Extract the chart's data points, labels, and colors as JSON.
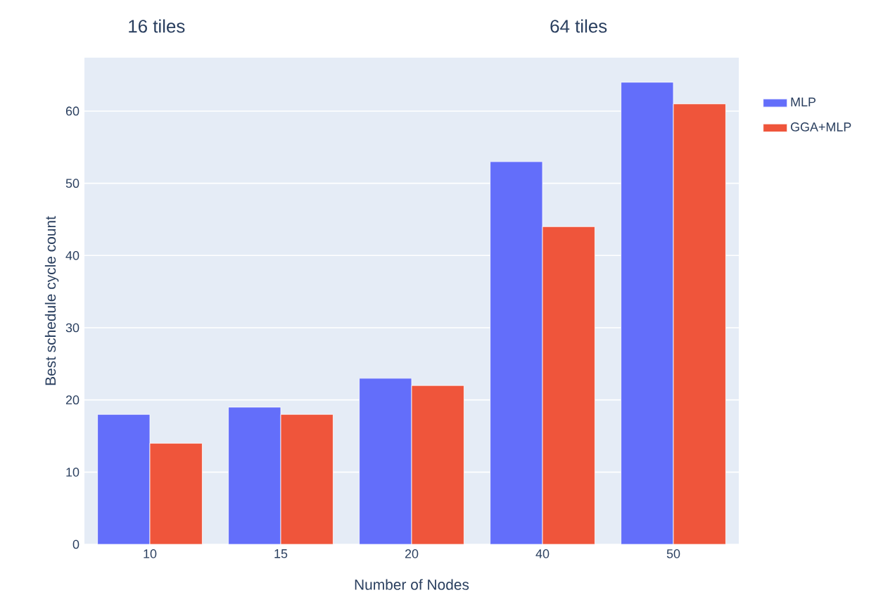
{
  "chart_data": {
    "type": "bar",
    "categories": [
      "10",
      "15",
      "20",
      "40",
      "50"
    ],
    "series": [
      {
        "name": "MLP",
        "color": "#636efa",
        "values": [
          18,
          19,
          23,
          53,
          64
        ]
      },
      {
        "name": "GGA+MLP",
        "color": "#ef553b",
        "values": [
          14,
          18,
          22,
          44,
          61
        ]
      }
    ],
    "xlabel": "Number of Nodes",
    "ylabel": "Best schedule cycle count",
    "annotations": [
      "16 tiles",
      "64 tiles"
    ],
    "ylim": [
      0,
      67.4
    ],
    "yticks": [
      0,
      10,
      20,
      30,
      40,
      50,
      60
    ],
    "grid": "y",
    "legend": "top right"
  }
}
